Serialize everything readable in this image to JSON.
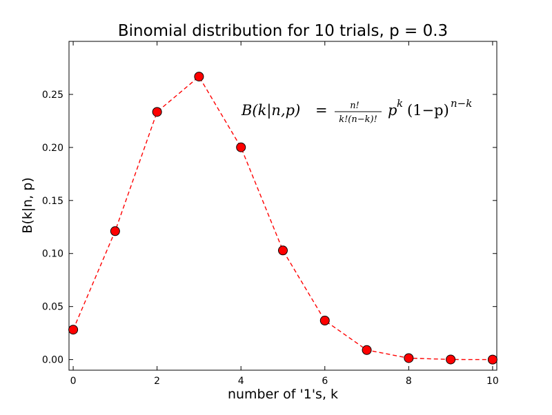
{
  "chart_data": {
    "type": "line",
    "title": "Binomial distribution for 10 trials, p = 0.3",
    "xlabel": "number of '1's, k",
    "ylabel": "B(k|n, p)",
    "xlim": [
      -0.1,
      10.1
    ],
    "ylim": [
      -0.01,
      0.3
    ],
    "x_ticks": [
      0,
      2,
      4,
      6,
      8,
      10
    ],
    "x_tick_labels": [
      "0",
      "2",
      "4",
      "6",
      "8",
      "10"
    ],
    "y_ticks": [
      0.0,
      0.05,
      0.1,
      0.15,
      0.2,
      0.25
    ],
    "y_tick_labels": [
      "0.00",
      "0.05",
      "0.10",
      "0.15",
      "0.20",
      "0.25"
    ],
    "grid": false,
    "legend": "none",
    "series": [
      {
        "line_style": "dashed",
        "marker": "circle",
        "color": "#ff0000",
        "x": [
          0,
          1,
          2,
          3,
          4,
          5,
          6,
          7,
          8,
          9,
          10
        ],
        "y": [
          0.0282,
          0.1211,
          0.2335,
          0.2668,
          0.2001,
          0.1029,
          0.0368,
          0.009,
          0.0014,
          0.0001,
          0.0
        ]
      }
    ],
    "annotation": {
      "lhs": "B(k|n,p)",
      "equals": "=",
      "numerator": "n!",
      "denominator": "k!(n−k)!",
      "p_base": "p",
      "p_exp": "k",
      "one_minus_p": "(1−p)",
      "one_minus_p_exp": "n−k"
    }
  }
}
